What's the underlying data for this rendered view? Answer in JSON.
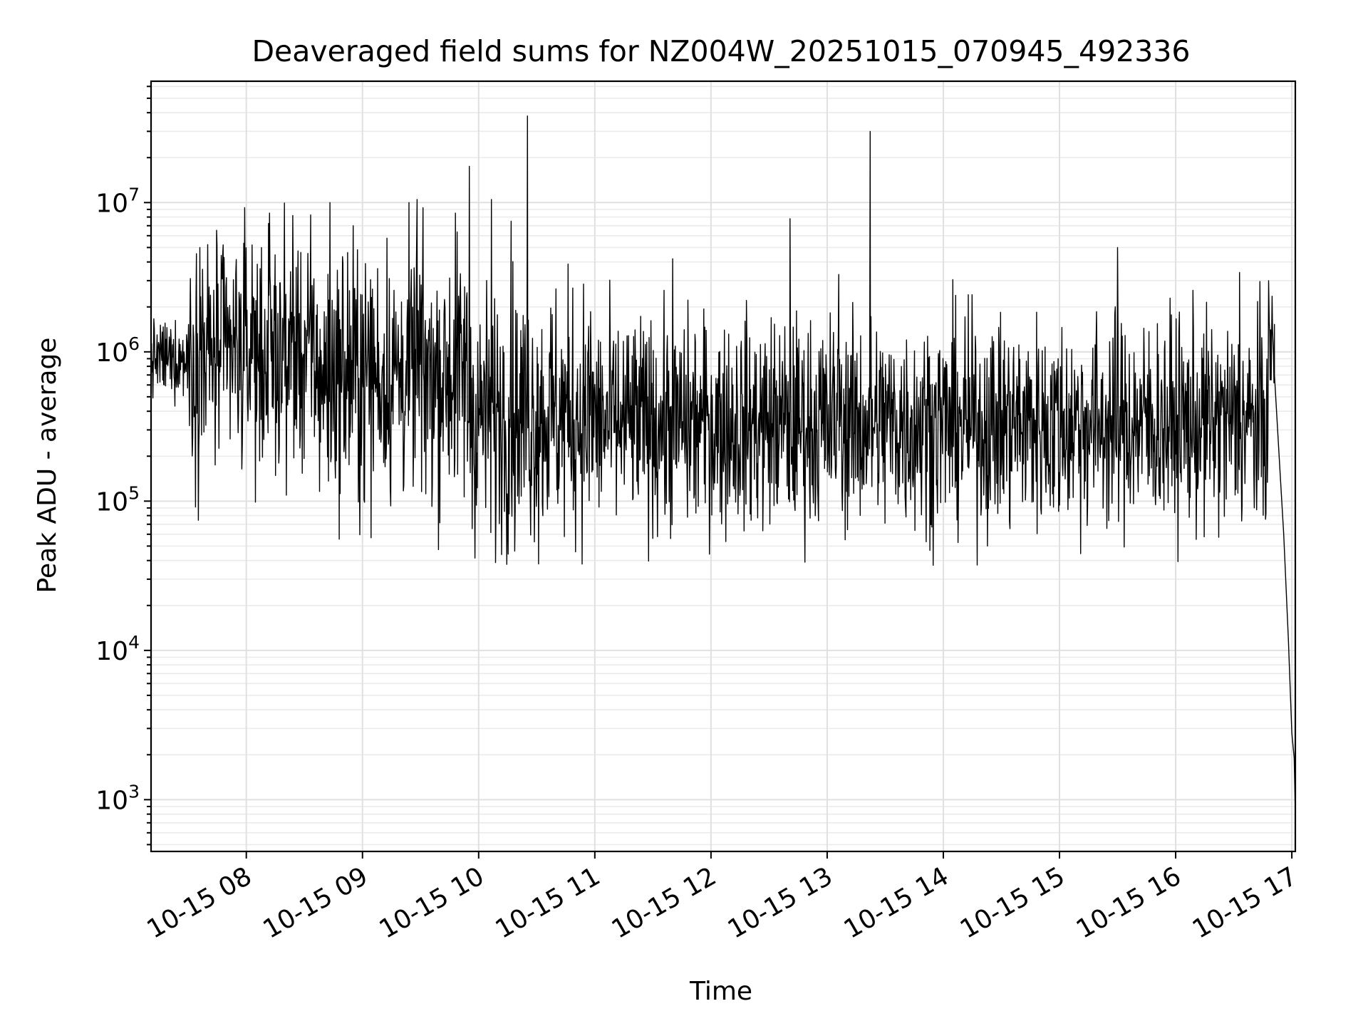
{
  "chart_data": {
    "type": "line",
    "title": "Deaveraged field sums for NZ004W_20251015_070945_492336",
    "xlabel": "Time",
    "ylabel": "Peak ADU - average",
    "yscale": "log",
    "ylim": [
      450,
      65000000
    ],
    "xlim_hours": [
      7.18,
      17.03
    ],
    "x_ticks": [
      {
        "label": "10-15 08",
        "hour": 8
      },
      {
        "label": "10-15 09",
        "hour": 9
      },
      {
        "label": "10-15 10",
        "hour": 10
      },
      {
        "label": "10-15 11",
        "hour": 11
      },
      {
        "label": "10-15 12",
        "hour": 12
      },
      {
        "label": "10-15 13",
        "hour": 13
      },
      {
        "label": "10-15 14",
        "hour": 14
      },
      {
        "label": "10-15 15",
        "hour": 15
      },
      {
        "label": "10-15 16",
        "hour": 16
      },
      {
        "label": "10-15 17",
        "hour": 17
      }
    ],
    "y_ticks": [
      {
        "base": "10",
        "exp": "3",
        "value": 1000
      },
      {
        "base": "10",
        "exp": "4",
        "value": 10000
      },
      {
        "base": "10",
        "exp": "5",
        "value": 100000
      },
      {
        "base": "10",
        "exp": "6",
        "value": 1000000
      },
      {
        "base": "10",
        "exp": "7",
        "value": 10000000
      }
    ],
    "grid": true,
    "series": [
      {
        "name": "Peak ADU - average",
        "color": "#000000",
        "segments": [
          {
            "start_hour": 7.18,
            "end_hour": 7.5,
            "median": 900000,
            "spread_dex": 0.18
          },
          {
            "start_hour": 7.5,
            "end_hour": 8.6,
            "median": 950000,
            "spread_dex": 0.55
          },
          {
            "start_hour": 8.6,
            "end_hour": 9.9,
            "median": 700000,
            "spread_dex": 0.6
          },
          {
            "start_hour": 9.9,
            "end_hour": 11.0,
            "median": 380000,
            "spread_dex": 0.6
          },
          {
            "start_hour": 11.0,
            "end_hour": 16.8,
            "median": 330000,
            "spread_dex": 0.5
          },
          {
            "start_hour": 16.8,
            "end_hour": 16.85,
            "median": 1100000,
            "spread_dex": 0.25
          }
        ],
        "spikes": [
          {
            "hour": 7.6,
            "value": 5000000
          },
          {
            "hour": 8.05,
            "value": 5200000
          },
          {
            "hour": 8.2,
            "value": 8500000
          },
          {
            "hour": 8.4,
            "value": 8200000
          },
          {
            "hour": 8.72,
            "value": 10000000
          },
          {
            "hour": 8.92,
            "value": 7000000
          },
          {
            "hour": 9.47,
            "value": 10500000
          },
          {
            "hour": 9.8,
            "value": 8500000
          },
          {
            "hour": 9.92,
            "value": 17500000
          },
          {
            "hour": 10.11,
            "value": 10500000
          },
          {
            "hour": 10.28,
            "value": 7500000
          },
          {
            "hour": 10.42,
            "value": 38000000
          },
          {
            "hour": 11.67,
            "value": 4200000
          },
          {
            "hour": 12.68,
            "value": 7800000
          },
          {
            "hour": 13.1,
            "value": 3300000
          },
          {
            "hour": 13.37,
            "value": 30000000
          },
          {
            "hour": 15.5,
            "value": 5000000
          },
          {
            "hour": 16.55,
            "value": 3400000
          },
          {
            "hour": 16.8,
            "value": 3000000
          }
        ],
        "tail": [
          {
            "hour": 16.85,
            "value": 700000
          },
          {
            "hour": 16.9,
            "value": 150000
          },
          {
            "hour": 16.93,
            "value": 60000
          },
          {
            "hour": 16.97,
            "value": 12000
          },
          {
            "hour": 17.0,
            "value": 2800
          },
          {
            "hour": 17.02,
            "value": 1900
          },
          {
            "hour": 17.03,
            "value": 800
          }
        ]
      }
    ]
  }
}
